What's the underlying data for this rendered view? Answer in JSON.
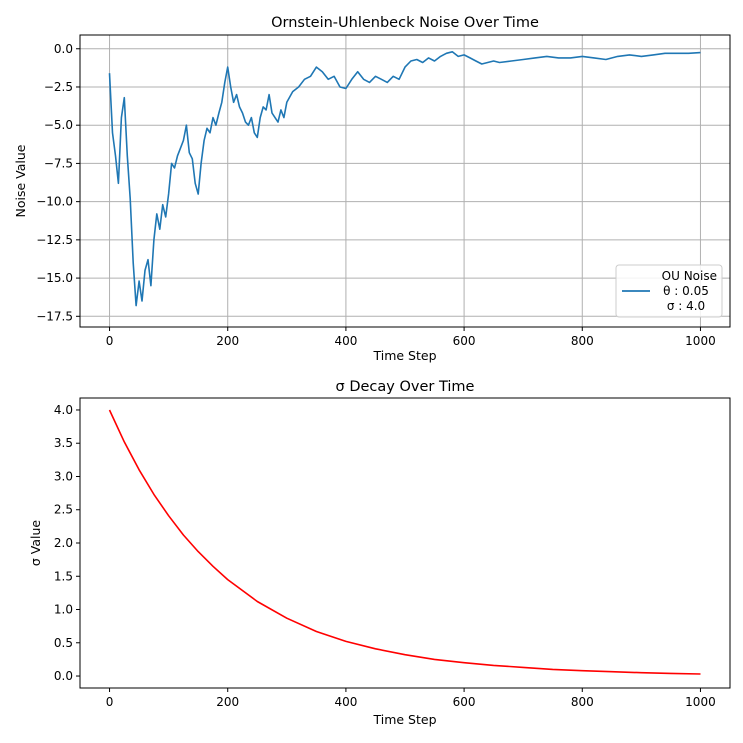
{
  "chart_data": [
    {
      "type": "line",
      "title": "Ornstein-Uhlenbeck Noise Over Time",
      "xlabel": "Time Step",
      "ylabel": "Noise Value",
      "xlim": [
        -50,
        1050
      ],
      "ylim": [
        -18.2,
        0.9
      ],
      "xticks": [
        0,
        200,
        400,
        600,
        800,
        1000
      ],
      "xtick_labels": [
        "0",
        "200",
        "400",
        "600",
        "800",
        "1000"
      ],
      "yticks": [
        0.0,
        -2.5,
        -5.0,
        -7.5,
        -10.0,
        -12.5,
        -15.0,
        -17.5
      ],
      "ytick_labels": [
        "0.0",
        "−2.5",
        "−5.0",
        "−7.5",
        "−10.0",
        "−12.5",
        "−15.0",
        "−17.5"
      ],
      "grid": true,
      "legend": {
        "placement": "lower-right",
        "title": "OU Noise",
        "lines": [
          "θ : 0.05",
          "σ : 4.0"
        ]
      },
      "series": [
        {
          "color": "#1f77b4",
          "x": [
            0,
            5,
            10,
            15,
            20,
            25,
            30,
            35,
            40,
            45,
            50,
            55,
            60,
            65,
            70,
            75,
            80,
            85,
            90,
            95,
            100,
            105,
            110,
            115,
            120,
            125,
            130,
            135,
            140,
            145,
            150,
            155,
            160,
            165,
            170,
            175,
            180,
            185,
            190,
            195,
            200,
            205,
            210,
            215,
            220,
            225,
            230,
            235,
            240,
            245,
            250,
            255,
            260,
            265,
            270,
            275,
            280,
            285,
            290,
            295,
            300,
            310,
            320,
            330,
            340,
            350,
            360,
            370,
            380,
            390,
            400,
            410,
            420,
            430,
            440,
            450,
            460,
            470,
            480,
            490,
            500,
            510,
            520,
            530,
            540,
            550,
            560,
            570,
            580,
            590,
            600,
            610,
            620,
            630,
            640,
            650,
            660,
            680,
            700,
            720,
            740,
            760,
            780,
            800,
            820,
            840,
            860,
            880,
            900,
            920,
            940,
            960,
            980,
            1000
          ],
          "y": [
            -1.6,
            -5.5,
            -7.0,
            -8.8,
            -4.5,
            -3.2,
            -7.0,
            -9.8,
            -14.0,
            -16.8,
            -15.2,
            -16.5,
            -14.5,
            -13.8,
            -15.5,
            -12.5,
            -10.8,
            -11.8,
            -10.2,
            -11.0,
            -9.5,
            -7.5,
            -7.8,
            -7.0,
            -6.5,
            -6.0,
            -5.0,
            -6.8,
            -7.2,
            -8.8,
            -9.5,
            -7.5,
            -6.0,
            -5.2,
            -5.5,
            -4.5,
            -5.0,
            -4.2,
            -3.5,
            -2.2,
            -1.2,
            -2.5,
            -3.5,
            -3.0,
            -3.8,
            -4.2,
            -4.8,
            -5.0,
            -4.5,
            -5.5,
            -5.8,
            -4.5,
            -3.8,
            -4.0,
            -3.0,
            -4.2,
            -4.5,
            -4.8,
            -4.0,
            -4.5,
            -3.5,
            -2.8,
            -2.5,
            -2.0,
            -1.8,
            -1.2,
            -1.5,
            -2.0,
            -1.8,
            -2.5,
            -2.6,
            -2.0,
            -1.5,
            -2.0,
            -2.2,
            -1.8,
            -2.0,
            -2.2,
            -1.8,
            -2.0,
            -1.2,
            -0.8,
            -0.7,
            -0.9,
            -0.6,
            -0.8,
            -0.5,
            -0.3,
            -0.2,
            -0.5,
            -0.4,
            -0.6,
            -0.8,
            -1.0,
            -0.9,
            -0.8,
            -0.9,
            -0.8,
            -0.7,
            -0.6,
            -0.5,
            -0.6,
            -0.6,
            -0.5,
            -0.6,
            -0.7,
            -0.5,
            -0.4,
            -0.5,
            -0.4,
            -0.3,
            -0.3,
            -0.3,
            -0.25
          ]
        }
      ]
    },
    {
      "type": "line",
      "title": "σ Decay Over Time",
      "xlabel": "Time Step",
      "ylabel": "σ Value",
      "xlim": [
        -50,
        1050
      ],
      "ylim": [
        -0.18,
        4.18
      ],
      "xticks": [
        0,
        200,
        400,
        600,
        800,
        1000
      ],
      "xtick_labels": [
        "0",
        "200",
        "400",
        "600",
        "800",
        "1000"
      ],
      "yticks": [
        0.0,
        0.5,
        1.0,
        1.5,
        2.0,
        2.5,
        3.0,
        3.5,
        4.0
      ],
      "ytick_labels": [
        "0.0",
        "0.5",
        "1.0",
        "1.5",
        "2.0",
        "2.5",
        "3.0",
        "3.5",
        "4.0"
      ],
      "grid": false,
      "series": [
        {
          "color": "#ff0000",
          "x": [
            0,
            25,
            50,
            75,
            100,
            125,
            150,
            175,
            200,
            250,
            300,
            350,
            400,
            450,
            500,
            550,
            600,
            650,
            700,
            750,
            800,
            850,
            900,
            950,
            1000
          ],
          "y": [
            4.0,
            3.52,
            3.1,
            2.73,
            2.41,
            2.12,
            1.87,
            1.65,
            1.45,
            1.12,
            0.87,
            0.67,
            0.52,
            0.41,
            0.32,
            0.25,
            0.2,
            0.16,
            0.13,
            0.1,
            0.08,
            0.065,
            0.05,
            0.04,
            0.03
          ]
        }
      ]
    }
  ]
}
